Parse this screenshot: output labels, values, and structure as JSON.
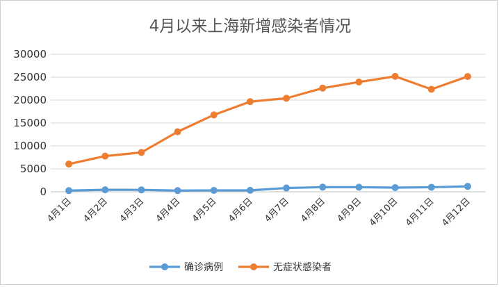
{
  "chart_data": {
    "type": "line",
    "title": "4月以来上海新增感染者情况",
    "xlabel": "",
    "ylabel": "",
    "categories": [
      "4月1日",
      "4月2日",
      "4月3日",
      "4月4日",
      "4月5日",
      "4月6日",
      "4月7日",
      "4月8日",
      "4月9日",
      "4月10日",
      "4月11日",
      "4月12日"
    ],
    "ylim": [
      0,
      30000
    ],
    "yticks": [
      "0",
      "5000",
      "10000",
      "15000",
      "20000",
      "25000",
      "30000"
    ],
    "grid": true,
    "legend_position": "bottom",
    "series": [
      {
        "name": "确诊病例",
        "color": "#5b9bd5",
        "values": [
          260,
          438,
          425,
          268,
          311,
          322,
          824,
          1015,
          1006,
          914,
          994,
          1189
        ]
      },
      {
        "name": "无症状感染者",
        "color": "#ed7d31",
        "values": [
          6051,
          7788,
          8581,
          13086,
          16766,
          19660,
          20398,
          22609,
          23937,
          25173,
          22348,
          25141
        ]
      }
    ]
  }
}
